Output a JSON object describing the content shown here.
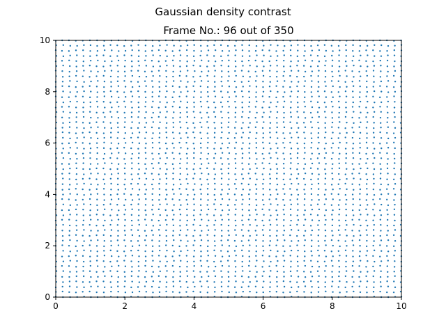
{
  "chart_data": {
    "type": "scatter",
    "suptitle": "Gaussian density contrast",
    "title": "Frame No.: 96 out of 350",
    "xlabel": "",
    "ylabel": "",
    "xlim": [
      0,
      10
    ],
    "ylim": [
      0,
      10
    ],
    "xticks": [
      0,
      2,
      4,
      6,
      8,
      10
    ],
    "yticks": [
      0,
      2,
      4,
      6,
      8,
      10
    ],
    "xtick_labels": [
      "0",
      "2",
      "4",
      "6",
      "8",
      "10"
    ],
    "ytick_labels": [
      "0",
      "2",
      "4",
      "6",
      "8",
      "10"
    ],
    "grid": false,
    "legend": "none",
    "marker_color": "#1f77b4",
    "series": [
      {
        "lattice": {
          "x_start": 0.0,
          "x_step": 0.2,
          "nx": 51,
          "y_start": 0.0,
          "y_step": 0.2,
          "ny": 51
        },
        "points_description": "regular particle lattice covering the full box, slightly perturbed near the top-left and bottom-right corners"
      }
    ]
  }
}
